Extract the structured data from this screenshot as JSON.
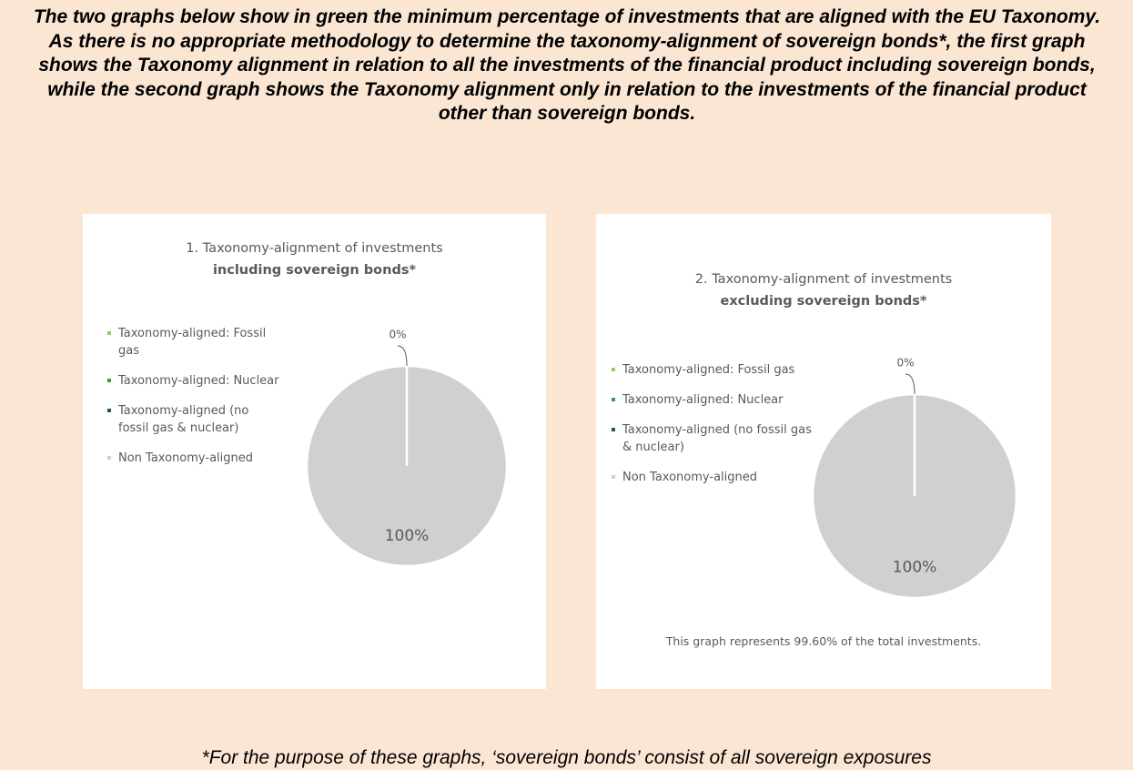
{
  "intro": "The two graphs below show in green the minimum percentage of investments that are aligned with the EU Taxonomy. As there is no appropriate methodology to determine the taxonomy-alignment of sovereign bonds*, the first graph shows the Taxonomy alignment in relation to all the investments of the financial product including sovereign bonds, while the second graph shows the Taxonomy alignment only in relation to the investments of the financial product other than sovereign bonds.",
  "chart_data": [
    {
      "type": "pie",
      "title": "1. Taxonomy-alignment of investments",
      "subtitle": "including sovereign bonds*",
      "categories": [
        "Taxonomy-aligned: Fossil gas",
        "Taxonomy-aligned: Nuclear",
        "Taxonomy-aligned (no fossil gas & nuclear)",
        "Non Taxonomy-aligned"
      ],
      "values": [
        0,
        0,
        0,
        100
      ],
      "value_labels": [
        null,
        null,
        "0%",
        "100%"
      ],
      "colors": [
        "#92d050",
        "#2e9e48",
        "#1e5a3c",
        "#d0d0d0"
      ],
      "legend": "left"
    },
    {
      "type": "pie",
      "title": "2. Taxonomy-alignment of investments",
      "subtitle": "excluding sovereign bonds*",
      "categories": [
        "Taxonomy-aligned: Fossil gas",
        "Taxonomy-aligned: Nuclear",
        "Taxonomy-aligned (no fossil gas & nuclear)",
        "Non Taxonomy-aligned"
      ],
      "values": [
        0,
        0,
        0,
        100
      ],
      "value_labels": [
        null,
        null,
        "0%",
        "100%"
      ],
      "colors": [
        "#92d050",
        "#2e9e48",
        "#1e5a3c",
        "#d0d0d0"
      ],
      "legend": "left",
      "note": "This graph represents 99.60% of the total investments."
    }
  ],
  "footnote": "*For the purpose of these graphs, ‘sovereign bonds’ consist of all sovereign exposures"
}
